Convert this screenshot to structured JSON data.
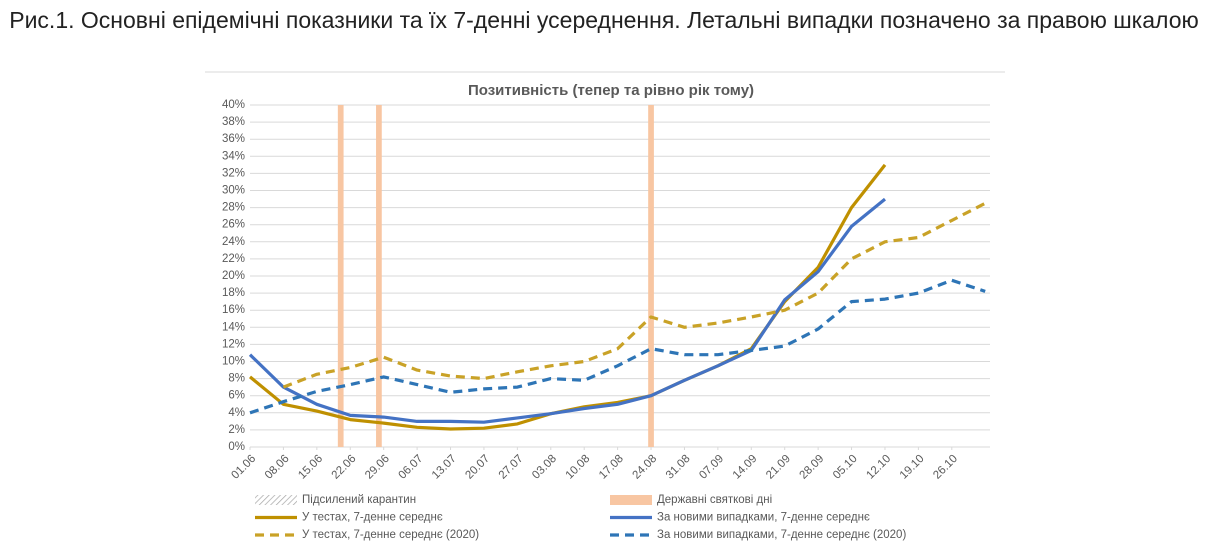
{
  "caption": "Рис.1. Основні епідемічні показники та їх 7-денні усереднення. Летальні випадки позначено за правою шкалою",
  "chart_data": {
    "type": "line",
    "title": "Позитивність (тепер та рівно рік тому)",
    "x": [
      0,
      7,
      14,
      21,
      28,
      35,
      42,
      49,
      56,
      63,
      70,
      77,
      84,
      91,
      98,
      105,
      112,
      119,
      126,
      133,
      140,
      147,
      154
    ],
    "xlim": [
      0,
      155
    ],
    "xticks": [
      {
        "value": 0,
        "label": "01.06"
      },
      {
        "value": 7,
        "label": "08.06"
      },
      {
        "value": 14,
        "label": "15.06"
      },
      {
        "value": 21,
        "label": "22.06"
      },
      {
        "value": 28,
        "label": "29.06"
      },
      {
        "value": 35,
        "label": "06.07"
      },
      {
        "value": 42,
        "label": "13.07"
      },
      {
        "value": 49,
        "label": "20.07"
      },
      {
        "value": 56,
        "label": "27.07"
      },
      {
        "value": 63,
        "label": "03.08"
      },
      {
        "value": 70,
        "label": "10.08"
      },
      {
        "value": 77,
        "label": "17.08"
      },
      {
        "value": 84,
        "label": "24.08"
      },
      {
        "value": 91,
        "label": "31.08"
      },
      {
        "value": 98,
        "label": "07.09"
      },
      {
        "value": 105,
        "label": "14.09"
      },
      {
        "value": 112,
        "label": "21.09"
      },
      {
        "value": 119,
        "label": "28.09"
      },
      {
        "value": 126,
        "label": "05.10"
      },
      {
        "value": 133,
        "label": "12.10"
      },
      {
        "value": 140,
        "label": "19.10"
      },
      {
        "value": 147,
        "label": "26.10"
      }
    ],
    "ylim": [
      0,
      40
    ],
    "yticks": [
      {
        "value": 0,
        "label": "0%"
      },
      {
        "value": 2,
        "label": "2%"
      },
      {
        "value": 4,
        "label": "4%"
      },
      {
        "value": 6,
        "label": "6%"
      },
      {
        "value": 8,
        "label": "8%"
      },
      {
        "value": 10,
        "label": "10%"
      },
      {
        "value": 12,
        "label": "12%"
      },
      {
        "value": 14,
        "label": "14%"
      },
      {
        "value": 16,
        "label": "16%"
      },
      {
        "value": 18,
        "label": "18%"
      },
      {
        "value": 20,
        "label": "20%"
      },
      {
        "value": 22,
        "label": "22%"
      },
      {
        "value": 24,
        "label": "24%"
      },
      {
        "value": 26,
        "label": "26%"
      },
      {
        "value": 28,
        "label": "28%"
      },
      {
        "value": 30,
        "label": "30%"
      },
      {
        "value": 32,
        "label": "32%"
      },
      {
        "value": 34,
        "label": "34%"
      },
      {
        "value": 36,
        "label": "36%"
      },
      {
        "value": 38,
        "label": "38%"
      },
      {
        "value": 40,
        "label": "40%"
      }
    ],
    "grid": true,
    "bands": [
      {
        "name": "Підсилений карантин",
        "style": "hatch",
        "color": "#c8c8c8",
        "x": []
      },
      {
        "name": "Державні святкові дні",
        "style": "solid",
        "color": "#f8c6a2",
        "x": [
          19,
          27,
          84
        ]
      }
    ],
    "series": [
      {
        "name": "У тестах, 7-денне середнє",
        "color": "#bf9000",
        "dash": false,
        "values": [
          8.2,
          5.0,
          4.2,
          3.2,
          2.8,
          2.3,
          2.1,
          2.2,
          2.7,
          3.9,
          4.7,
          5.2,
          6.0,
          7.8,
          9.5,
          11.5,
          17.0,
          21.0,
          28.0,
          33.0,
          null,
          null,
          null
        ]
      },
      {
        "name": "За новими випадками, 7-денне середнє",
        "color": "#4472c4",
        "dash": false,
        "values": [
          10.8,
          7.0,
          5.0,
          3.7,
          3.5,
          3.0,
          3.0,
          2.9,
          3.4,
          3.9,
          4.5,
          5.0,
          6.0,
          7.8,
          9.5,
          11.3,
          17.2,
          20.5,
          25.8,
          29.0,
          null,
          null,
          null
        ]
      },
      {
        "name": "У тестах, 7-денне середнє (2020)",
        "color": "#c9a227",
        "dash": true,
        "values": [
          null,
          7.0,
          8.5,
          9.3,
          10.5,
          9.0,
          8.3,
          8.0,
          8.8,
          9.5,
          10.0,
          11.5,
          15.2,
          14.0,
          14.5,
          15.2,
          16.0,
          18.0,
          22.0,
          24.0,
          24.5,
          26.5,
          28.5
        ]
      },
      {
        "name": "За новими випадками, 7-денне середнє (2020)",
        "color": "#2e75b6",
        "dash": true,
        "values": [
          4.0,
          5.3,
          6.5,
          7.3,
          8.2,
          7.3,
          6.4,
          6.8,
          7.0,
          8.0,
          7.8,
          9.5,
          11.5,
          10.8,
          10.8,
          11.3,
          11.8,
          13.8,
          17.0,
          17.3,
          18.0,
          19.5,
          18.2
        ]
      }
    ]
  }
}
